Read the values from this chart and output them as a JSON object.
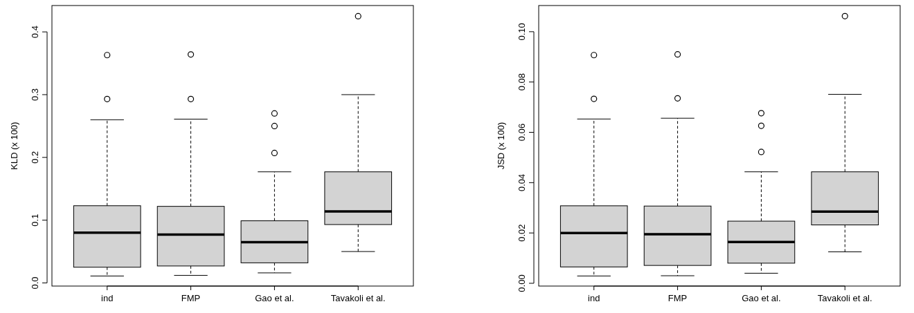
{
  "chart_data": [
    {
      "type": "box",
      "ylabel": "KLD (x 100)",
      "categories": [
        "ind",
        "FMP",
        "Gao et al.",
        "Tavakoli et al."
      ],
      "ylim": [
        -0.005,
        0.442
      ],
      "yticks": [
        {
          "value": 0,
          "label": "0.0"
        },
        0.1,
        0.2,
        0.3,
        0.4
      ],
      "series": [
        {
          "color": "#d3d3d3",
          "boxes": [
            {
              "low": 0.011,
              "q1": 0.025,
              "median": 0.08,
              "q3": 0.123,
              "high": 0.26,
              "outliers": [
                0.293,
                0.363
              ]
            },
            {
              "low": 0.012,
              "q1": 0.027,
              "median": 0.077,
              "q3": 0.122,
              "high": 0.261,
              "outliers": [
                0.293,
                0.364
              ]
            },
            {
              "low": 0.016,
              "q1": 0.032,
              "median": 0.065,
              "q3": 0.099,
              "high": 0.177,
              "outliers": [
                0.207,
                0.25,
                0.27
              ]
            },
            {
              "low": 0.05,
              "q1": 0.093,
              "median": 0.114,
              "q3": 0.177,
              "high": 0.3,
              "outliers": [
                0.425
              ]
            }
          ]
        }
      ]
    },
    {
      "type": "box",
      "ylabel": "JSD (x 100)",
      "categories": [
        "ind",
        "FMP",
        "Gao et al.",
        "Tavakoli et al."
      ],
      "ylim": [
        -0.0011,
        0.1104
      ],
      "yticks": [
        {
          "value": 0,
          "label": "0.00"
        },
        {
          "value": 0.02,
          "label": "0.02"
        },
        {
          "value": 0.04,
          "label": "0.04"
        },
        {
          "value": 0.06,
          "label": "0.06"
        },
        {
          "value": 0.08,
          "label": "0.08"
        },
        {
          "value": 0.1,
          "label": "0.10"
        }
      ],
      "series": [
        {
          "color": "#d3d3d3",
          "boxes": [
            {
              "low": 0.0029,
              "q1": 0.0065,
              "median": 0.02,
              "q3": 0.0308,
              "high": 0.0653,
              "outliers": [
                0.0733,
                0.0907
              ]
            },
            {
              "low": 0.003,
              "q1": 0.0071,
              "median": 0.0195,
              "q3": 0.0307,
              "high": 0.0656,
              "outliers": [
                0.0735,
                0.091
              ]
            },
            {
              "low": 0.004,
              "q1": 0.008,
              "median": 0.0164,
              "q3": 0.0247,
              "high": 0.0443,
              "outliers": [
                0.0522,
                0.0626,
                0.0676
              ]
            },
            {
              "low": 0.0125,
              "q1": 0.0232,
              "median": 0.0285,
              "q3": 0.0443,
              "high": 0.0751,
              "outliers": [
                0.1062
              ]
            }
          ]
        }
      ]
    }
  ]
}
